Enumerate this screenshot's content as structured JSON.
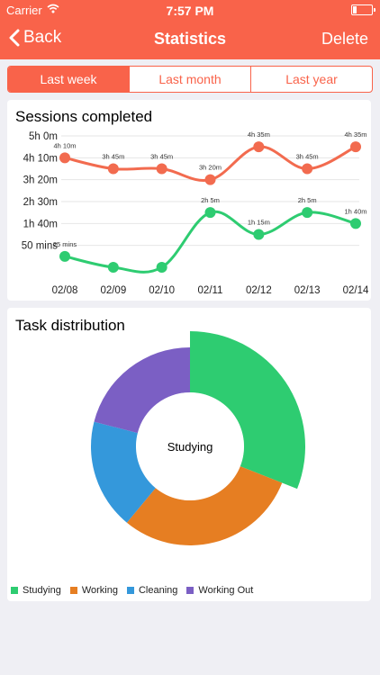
{
  "status_bar": {
    "carrier": "Carrier",
    "time": "7:57 PM"
  },
  "nav": {
    "back_label": "Back",
    "title": "Statistics",
    "delete_label": "Delete"
  },
  "segments": [
    {
      "label": "Last week",
      "active": true
    },
    {
      "label": "Last month",
      "active": false
    },
    {
      "label": "Last year",
      "active": false
    }
  ],
  "sessions": {
    "title": "Sessions completed"
  },
  "distribution": {
    "title": "Task distribution",
    "center_label": "Studying"
  },
  "colors": {
    "accent": "#f9634a",
    "studying": "#2ecc71",
    "working": "#e67e22",
    "cleaning": "#3498db",
    "working_out": "#7b5fc4"
  },
  "chart_data": [
    {
      "type": "line",
      "title": "Sessions completed",
      "categories": [
        "02/08",
        "02/09",
        "02/10",
        "02/11",
        "02/12",
        "02/13",
        "02/14"
      ],
      "y_tick_labels": [
        "5h 0m",
        "4h 10m",
        "3h 20m",
        "2h 30m",
        "1h 40m",
        "50 mins"
      ],
      "y_tick_values": [
        300,
        250,
        200,
        150,
        100,
        50
      ],
      "ylim": [
        0,
        300
      ],
      "grid": true,
      "series": [
        {
          "color": "#f26b4f",
          "values": [
            250,
            225,
            225,
            200,
            275,
            225,
            275
          ],
          "labels": [
            "4h 10m",
            "3h 45m",
            "3h 45m",
            "3h 20m",
            "4h 35m",
            "3h 45m",
            "4h 35m"
          ]
        },
        {
          "color": "#2ecc71",
          "values": [
            25,
            0,
            0,
            125,
            75,
            125,
            100
          ],
          "labels": [
            "25 mins",
            "",
            "",
            "2h 5m",
            "1h 15m",
            "2h 5m",
            "1h 40m"
          ]
        }
      ]
    },
    {
      "type": "pie",
      "title": "Task distribution",
      "categories": [
        "Studying",
        "Working",
        "Cleaning",
        "Working Out"
      ],
      "values": [
        31,
        30,
        18,
        21
      ],
      "colors": [
        "#2ecc71",
        "#e67e22",
        "#3498db",
        "#7b5fc4"
      ],
      "center_label": "Studying",
      "highlighted": "Studying",
      "legend": "bottom-left"
    }
  ]
}
